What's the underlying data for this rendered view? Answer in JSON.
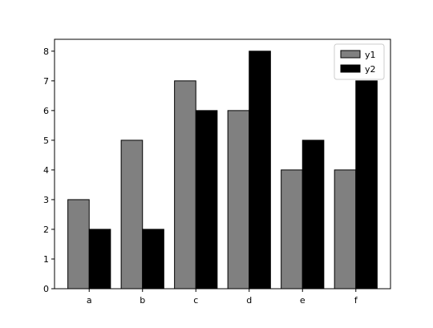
{
  "chart_data": {
    "type": "bar",
    "categories": [
      "a",
      "b",
      "c",
      "d",
      "e",
      "f"
    ],
    "series": [
      {
        "name": "y1",
        "values": [
          3,
          5,
          7,
          6,
          4,
          4
        ],
        "color": "#808080"
      },
      {
        "name": "y2",
        "values": [
          2,
          2,
          6,
          8,
          5,
          7
        ],
        "color": "#000000"
      }
    ],
    "title": "",
    "xlabel": "",
    "ylabel": "",
    "ylim": [
      0,
      8.4
    ],
    "yticks": [
      0,
      1,
      2,
      3,
      4,
      5,
      6,
      7,
      8
    ],
    "grid": false,
    "legend_position": "top-right"
  }
}
